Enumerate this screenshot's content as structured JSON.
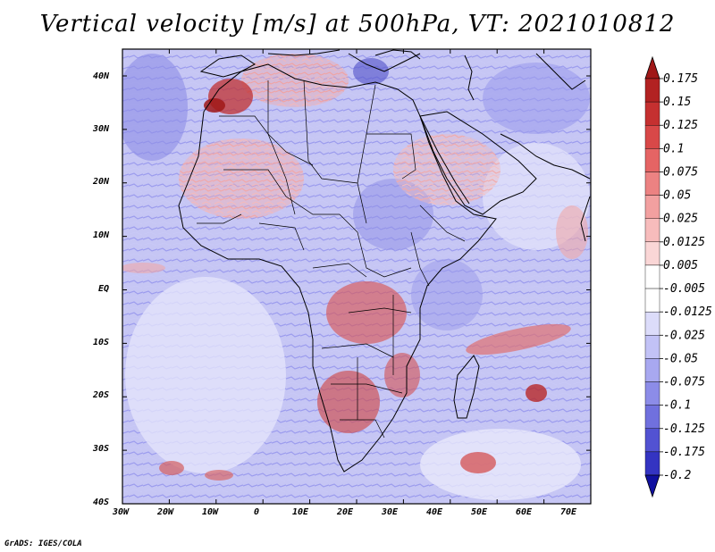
{
  "title": "Vertical velocity [m/s] at 500hPa, VT: 2021010812",
  "credit": "GrADS: IGES/COLA",
  "map": {
    "region": "Africa",
    "lon_labels": [
      "30W",
      "20W",
      "10W",
      "0",
      "10E",
      "20E",
      "30E",
      "40E",
      "50E",
      "60E",
      "70E"
    ],
    "lat_labels": [
      "40N",
      "30N",
      "20N",
      "10N",
      "EQ",
      "10S",
      "20S",
      "30S",
      "40S"
    ]
  },
  "colorbar": {
    "levels": [
      {
        "label": "0.175",
        "color": "#b22222"
      },
      {
        "label": "0.15",
        "color": "#c53030"
      },
      {
        "label": "0.125",
        "color": "#d84848"
      },
      {
        "label": "0.1",
        "color": "#e56464"
      },
      {
        "label": "0.075",
        "color": "#ec8282"
      },
      {
        "label": "0.05",
        "color": "#f2a0a0"
      },
      {
        "label": "0.025",
        "color": "#f7bcbc"
      },
      {
        "label": "0.0125",
        "color": "#fad6d6"
      },
      {
        "label": "0.005",
        "color": "#ffffff"
      },
      {
        "label": "-0.005",
        "color": "#ffffff"
      },
      {
        "label": "-0.0125",
        "color": "#dcdcfa"
      },
      {
        "label": "-0.025",
        "color": "#c2c2f6"
      },
      {
        "label": "-0.05",
        "color": "#a8a8f0"
      },
      {
        "label": "-0.075",
        "color": "#8c8ce8"
      },
      {
        "label": "-0.1",
        "color": "#7070de"
      },
      {
        "label": "-0.125",
        "color": "#5252d2"
      },
      {
        "label": "-0.175",
        "color": "#3434c2"
      },
      {
        "label": "-0.2",
        "color": "#1a1aa8"
      }
    ],
    "top_arrow_color": "#a01818",
    "bottom_arrow_color": "#1010a0"
  }
}
